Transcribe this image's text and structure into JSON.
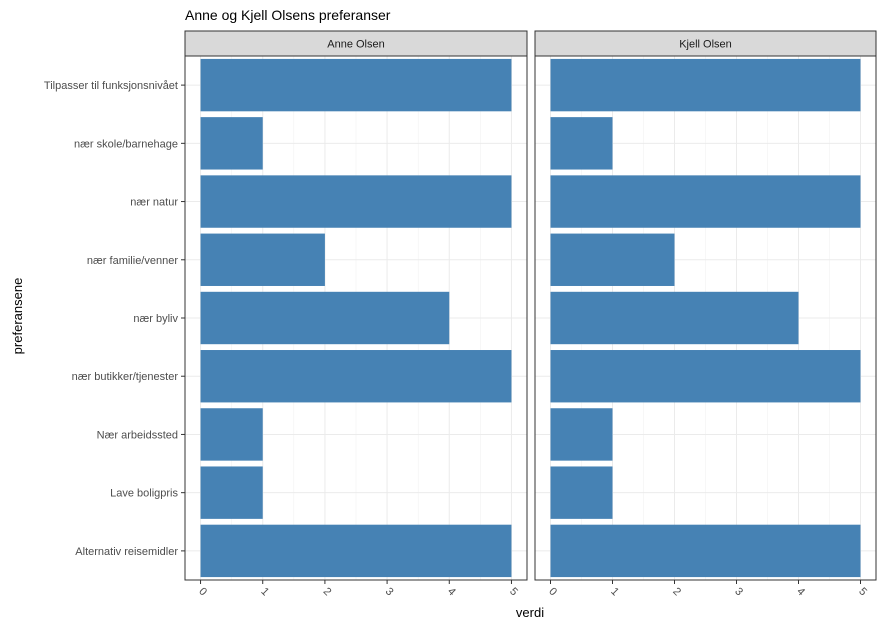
{
  "chart_data": {
    "type": "bar",
    "orientation": "horizontal",
    "title": "Anne og Kjell Olsens preferanser",
    "xlabel": "verdi",
    "ylabel": "preferansene",
    "xlim": [
      0,
      5
    ],
    "xticks": [
      0,
      1,
      2,
      3,
      4,
      5
    ],
    "tick_label_rotation": -45,
    "grid": true,
    "bar_color": "#4682B4",
    "strip_fill": "#D9D9D9",
    "categories": [
      "Tilpasser til funksjonsnivået",
      "nær skole/barnehage",
      "nær natur",
      "nær familie/venner",
      "nær byliv",
      "nær butikker/tjenester",
      "Nær arbeidssted",
      "Lave boligpris",
      "Alternativ reisemidler"
    ],
    "facets": [
      {
        "name": "Anne Olsen",
        "values": [
          5,
          1,
          5,
          2,
          4,
          5,
          1,
          1,
          5
        ]
      },
      {
        "name": "Kjell Olsen",
        "values": [
          5,
          1,
          5,
          2,
          4,
          5,
          1,
          1,
          5
        ]
      }
    ]
  }
}
